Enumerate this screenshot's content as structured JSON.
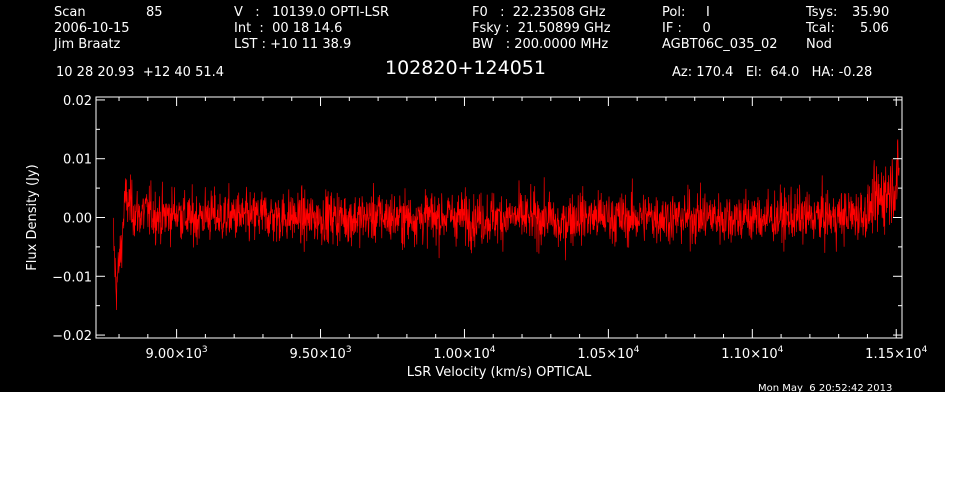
{
  "header": {
    "scan_label": "Scan",
    "scan_value": "85",
    "date": "2006-10-15",
    "observer": "Jim Braatz",
    "v_line": "V   :   10139.0 OPTI-LSR",
    "int_line": "Int  :  00 18 14.6",
    "lst_line": "LST : +10 11 38.9",
    "f0_line": "F0   :  22.23508 GHz",
    "fsky_line": "Fsky :  21.50899 GHz",
    "bw_line": "BW   : 200.0000 MHz",
    "pol_line": "Pol:     I",
    "if_line": "IF :     0",
    "project": "AGBT06C_035_02",
    "tsys_label": "Tsys:",
    "tsys_value": "35.90",
    "tcal_label": "Tcal:",
    "tcal_value": "5.06",
    "proc": "Nod",
    "coords": "10 28 20.93  +12 40 51.4",
    "source": "102820+124051",
    "az_el_ha": "Az: 170.4   El:  64.0   HA: -0.28",
    "timestamp": "Mon May  6 20:52:42 2013"
  },
  "chart_data": {
    "type": "line",
    "xlabel": "LSR Velocity (km/s) OPTICAL",
    "ylabel": "Flux Density (Jy)",
    "xlim": [
      8720,
      11520
    ],
    "ylim": [
      -0.0205,
      0.0205
    ],
    "x_ticks": [
      {
        "value": 9000,
        "mant": "9.00",
        "exp": "3"
      },
      {
        "value": 9500,
        "mant": "9.50",
        "exp": "3"
      },
      {
        "value": 10000,
        "mant": "1.00",
        "exp": "4"
      },
      {
        "value": 10500,
        "mant": "1.05",
        "exp": "4"
      },
      {
        "value": 11000,
        "mant": "1.10",
        "exp": "4"
      },
      {
        "value": 11500,
        "mant": "1.15",
        "exp": "4"
      }
    ],
    "y_ticks": [
      {
        "value": 0.02,
        "label": "0.02"
      },
      {
        "value": 0.01,
        "label": "0.01"
      },
      {
        "value": 0.0,
        "label": "0.00"
      },
      {
        "value": -0.01,
        "label": "-0.01"
      },
      {
        "value": -0.02,
        "label": "-0.02"
      }
    ],
    "grid": false,
    "series": [
      {
        "color": "#ff0000",
        "points": [
          [
            8780,
            -0.003
          ],
          [
            8790,
            -0.012
          ],
          [
            8800,
            -0.008
          ],
          [
            8810,
            -0.004
          ],
          [
            8820,
            0.003
          ],
          [
            8840,
            0.002
          ],
          [
            8860,
            0.0005
          ],
          [
            8900,
            0.001
          ],
          [
            8950,
            0.0
          ],
          [
            9000,
            0.001
          ],
          [
            9050,
            -0.0005
          ],
          [
            9100,
            0.0005
          ],
          [
            9150,
            0.0
          ],
          [
            9200,
            0.0003
          ],
          [
            9250,
            -0.0002
          ],
          [
            9300,
            0.0004
          ],
          [
            9350,
            0.0
          ],
          [
            9400,
            0.0002
          ],
          [
            9450,
            -0.0003
          ],
          [
            9500,
            0.0
          ],
          [
            9550,
            0.0002
          ],
          [
            9600,
            -0.0002
          ],
          [
            9650,
            0.0
          ],
          [
            9700,
            0.0003
          ],
          [
            9750,
            0.0
          ],
          [
            9800,
            -0.0002
          ],
          [
            9850,
            0.0001
          ],
          [
            9900,
            0.0
          ],
          [
            9950,
            0.0003
          ],
          [
            10000,
            0.0
          ],
          [
            10050,
            -0.0002
          ],
          [
            10100,
            0.0
          ],
          [
            10150,
            0.0001
          ],
          [
            10200,
            0.0
          ],
          [
            10250,
            -0.0002
          ],
          [
            10300,
            0.0
          ],
          [
            10330,
            -0.002
          ],
          [
            10360,
            0.0
          ],
          [
            10400,
            0.0002
          ],
          [
            10450,
            0.0
          ],
          [
            10500,
            0.0001
          ],
          [
            10550,
            -0.0002
          ],
          [
            10600,
            0.0
          ],
          [
            10650,
            0.0002
          ],
          [
            10700,
            0.0
          ],
          [
            10750,
            -0.0001
          ],
          [
            10800,
            0.0
          ],
          [
            10850,
            0.0002
          ],
          [
            10900,
            0.0
          ],
          [
            10950,
            0.0001
          ],
          [
            11000,
            0.0
          ],
          [
            11050,
            -0.0001
          ],
          [
            11100,
            0.0
          ],
          [
            11150,
            0.0002
          ],
          [
            11200,
            0.0
          ],
          [
            11250,
            0.0001
          ],
          [
            11300,
            0.0
          ],
          [
            11350,
            0.0005
          ],
          [
            11400,
            0.0008
          ],
          [
            11420,
            0.002
          ],
          [
            11440,
            0.003
          ],
          [
            11460,
            0.004
          ],
          [
            11480,
            0.005
          ],
          [
            11500,
            0.006
          ],
          [
            11510,
            0.007
          ]
        ],
        "noise_rms": 0.004
      }
    ]
  }
}
